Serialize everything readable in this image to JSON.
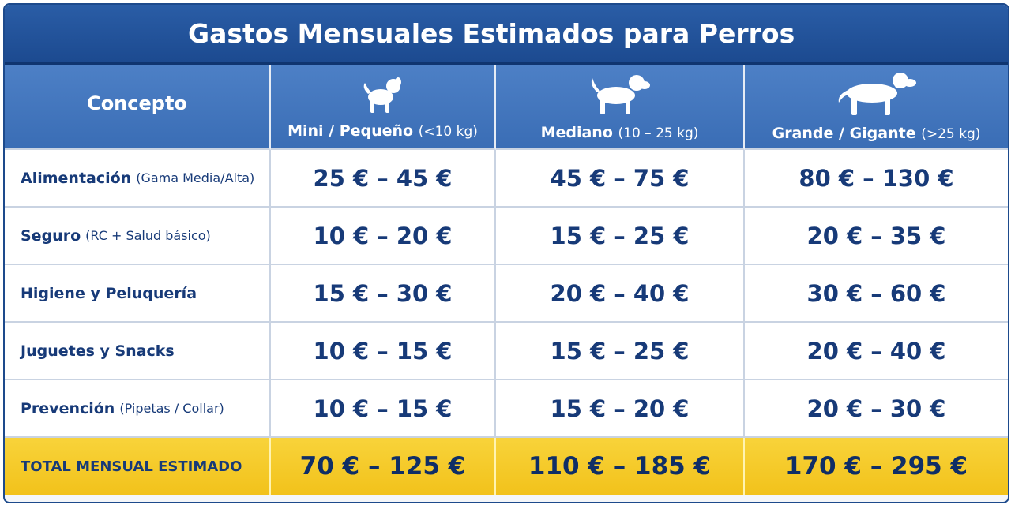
{
  "header": {
    "title": "Gastos Mensuales Estimados para Perros"
  },
  "table": {
    "columns": [
      {
        "label": "Concepto"
      },
      {
        "label": "Mini / Pequeño",
        "note": "(<10 kg)"
      },
      {
        "label": "Mediano",
        "note": "(10 – 25 kg)"
      },
      {
        "label": "Grande / Gigante",
        "note": "(>25 kg)"
      }
    ],
    "rows": [
      {
        "concept": "Alimentación",
        "note": "(Gama Media/Alta)",
        "values": [
          "25 € – 45 €",
          "45 € – 75 €",
          "80 € – 130 €"
        ]
      },
      {
        "concept": "Seguro",
        "note": "(RC + Salud básico)",
        "values": [
          "10 € – 20 €",
          "15 € – 25 €",
          "20 € – 35 €"
        ]
      },
      {
        "concept": "Higiene y Peluquería",
        "values": [
          "15 € – 30 €",
          "20 € – 40 €",
          "30 € – 60 €"
        ]
      },
      {
        "concept": "Juguetes y Snacks",
        "values": [
          "10 € – 15 €",
          "15 € – 25 €",
          "20 € – 40 €"
        ]
      },
      {
        "concept": "Prevención",
        "note": "(Pipetas / Collar)",
        "values": [
          "10 € – 15 €",
          "15 € – 20 €",
          "20 € – 30 €"
        ]
      }
    ],
    "total": {
      "concept": "TOTAL MENSUAL ESTIMADO",
      "values": [
        "70 € – 125 €",
        "110 € – 185 €",
        "170 € – 295 €"
      ]
    }
  }
}
